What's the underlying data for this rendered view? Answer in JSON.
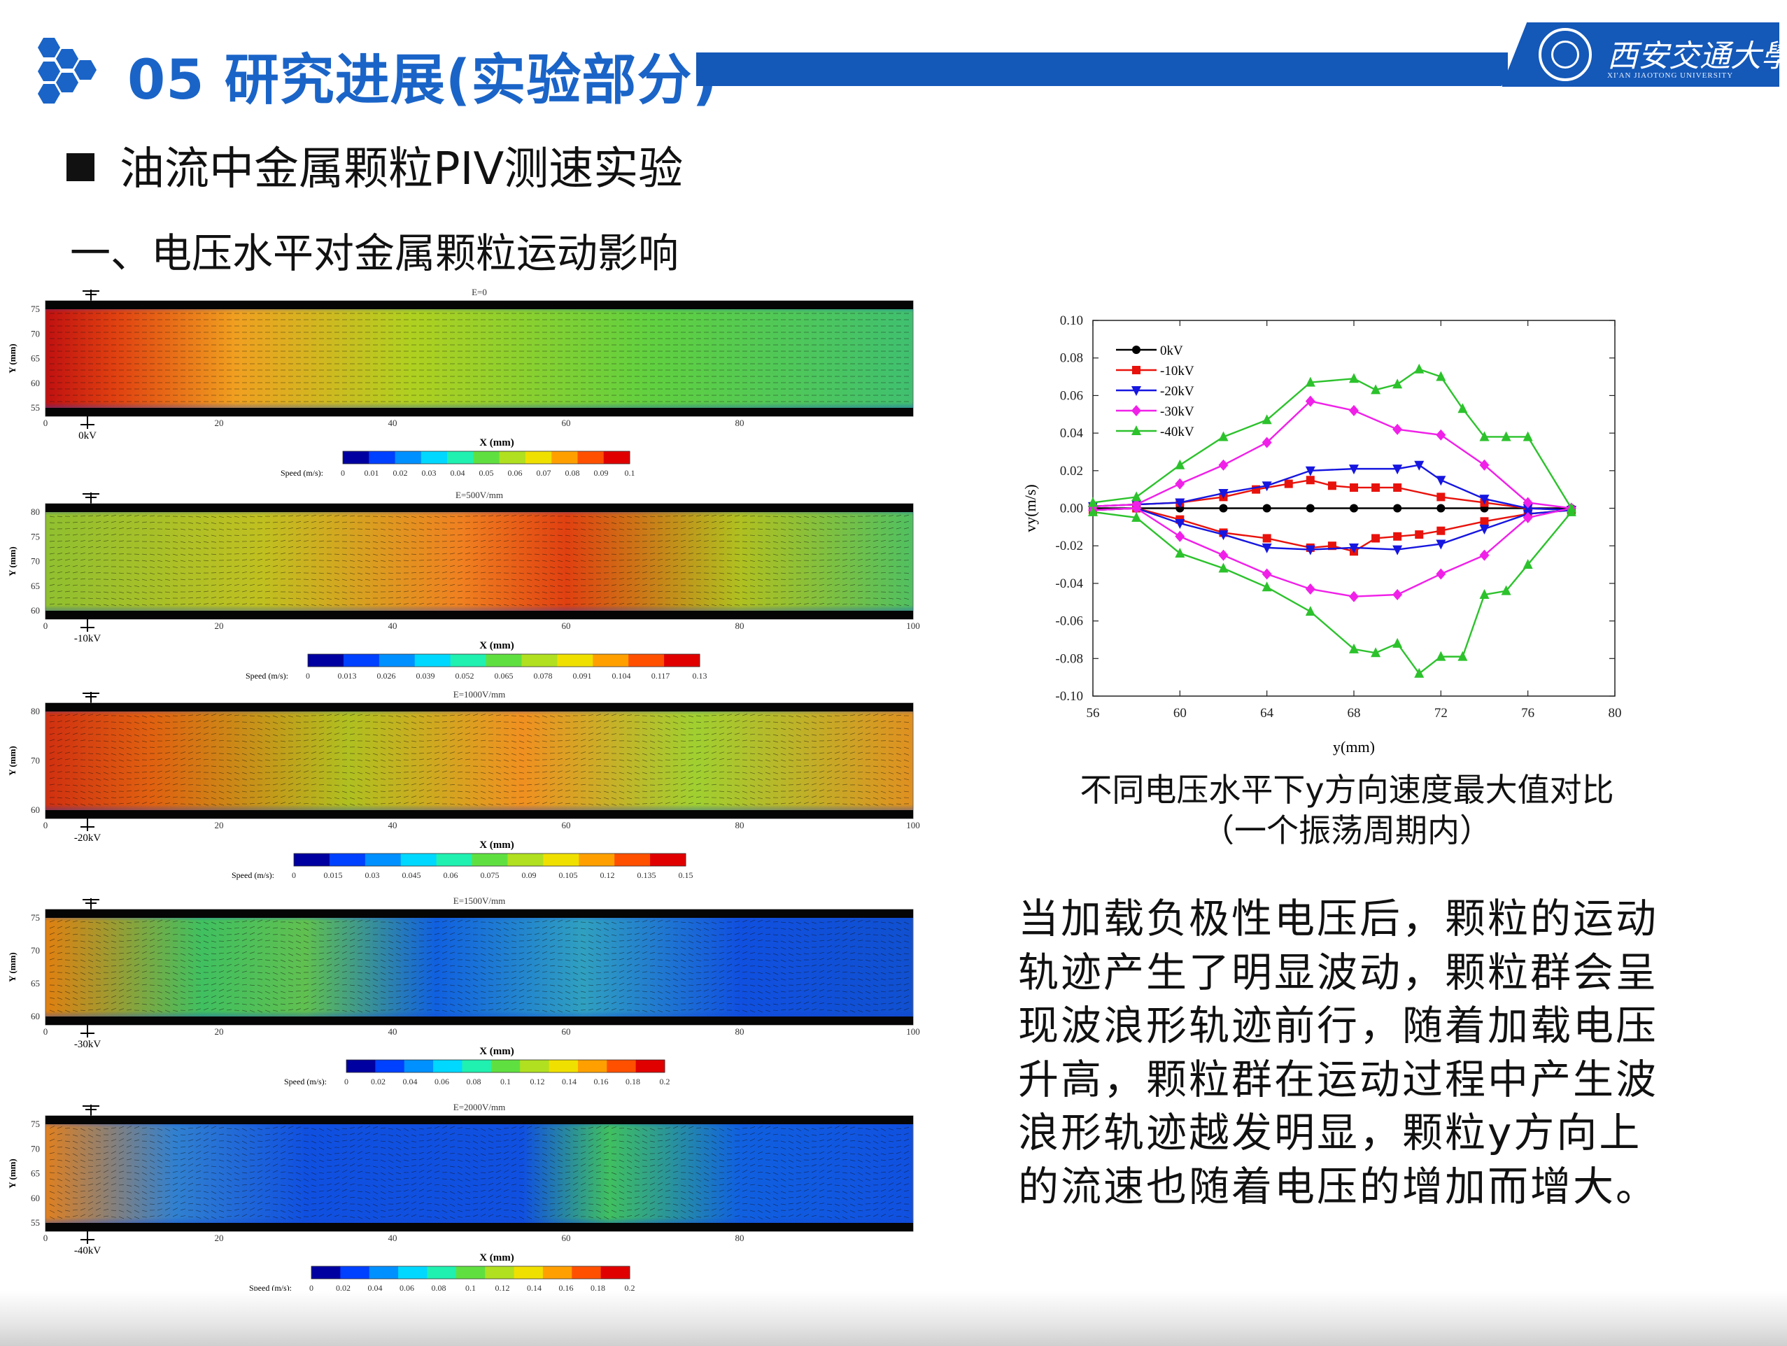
{
  "header": {
    "title": "05 研究进展(实验部分)",
    "university_cn": "西安交通大學",
    "university_en": "XI'AN JIAOTONG UNIVERSITY",
    "accent_color": "#1458b8"
  },
  "headings": {
    "main": "油流中金属颗粒PIV测速实验",
    "sub": "一、电压水平对金属颗粒运动影响"
  },
  "piv_panels": [
    {
      "field_title": "E=0",
      "voltage_label": "0kV",
      "y_axis_label": "Y (mm)",
      "x_axis_label": "X (mm)",
      "y_ticks": [
        "75",
        "70",
        "65",
        "60",
        "55"
      ],
      "x_ticks": [
        "0",
        "20",
        "40",
        "60",
        "80"
      ],
      "speed_label": "Speed (m/s):",
      "colorbar_ticks": [
        "0",
        "0.01",
        "0.02",
        "0.03",
        "0.04",
        "0.05",
        "0.06",
        "0.07",
        "0.08",
        "0.09",
        "0.1"
      ]
    },
    {
      "field_title": "E=500V/mm",
      "voltage_label": "-10kV",
      "y_axis_label": "Y (mm)",
      "x_axis_label": "X (mm)",
      "y_ticks": [
        "80",
        "75",
        "70",
        "65",
        "60"
      ],
      "x_ticks": [
        "0",
        "20",
        "40",
        "60",
        "80",
        "100"
      ],
      "speed_label": "Speed (m/s):",
      "colorbar_ticks": [
        "0",
        "0.013",
        "0.026",
        "0.039",
        "0.052",
        "0.065",
        "0.078",
        "0.091",
        "0.104",
        "0.117",
        "0.13"
      ]
    },
    {
      "field_title": "E=1000V/mm",
      "voltage_label": "-20kV",
      "y_axis_label": "Y (mm)",
      "x_axis_label": "X (mm)",
      "y_ticks": [
        "80",
        "70",
        "60"
      ],
      "x_ticks": [
        "0",
        "20",
        "40",
        "60",
        "80",
        "100"
      ],
      "speed_label": "Speed (m/s):",
      "colorbar_ticks": [
        "0",
        "0.015",
        "0.03",
        "0.045",
        "0.06",
        "0.075",
        "0.09",
        "0.105",
        "0.12",
        "0.135",
        "0.15"
      ]
    },
    {
      "field_title": "E=1500V/mm",
      "voltage_label": "-30kV",
      "y_axis_label": "Y (mm)",
      "x_axis_label": "X (mm)",
      "y_ticks": [
        "75",
        "70",
        "65",
        "60"
      ],
      "x_ticks": [
        "0",
        "20",
        "40",
        "60",
        "80",
        "100"
      ],
      "speed_label": "Speed (m/s):",
      "colorbar_ticks": [
        "0",
        "0.02",
        "0.04",
        "0.06",
        "0.08",
        "0.1",
        "0.12",
        "0.14",
        "0.16",
        "0.18",
        "0.2"
      ]
    },
    {
      "field_title": "E=2000V/mm",
      "voltage_label": "-40kV",
      "y_axis_label": "Y (mm)",
      "x_axis_label": "X (mm)",
      "y_ticks": [
        "75",
        "70",
        "65",
        "60",
        "55"
      ],
      "x_ticks": [
        "0",
        "20",
        "40",
        "60",
        "80"
      ],
      "speed_label": "Speed (m/s):",
      "colorbar_ticks": [
        "0",
        "0.02",
        "0.04",
        "0.06",
        "0.08",
        "0.1",
        "0.12",
        "0.14",
        "0.16",
        "0.18",
        "0.2"
      ]
    }
  ],
  "chart_data": {
    "type": "line",
    "xlabel": "y(mm)",
    "ylabel": "vy(m/s)",
    "xlim": [
      56,
      80
    ],
    "ylim": [
      -0.1,
      0.1
    ],
    "x_ticks": [
      56,
      60,
      64,
      68,
      72,
      76,
      80
    ],
    "y_ticks": [
      0.1,
      0.08,
      0.06,
      0.04,
      0.02,
      0.0,
      -0.02,
      -0.04,
      -0.06,
      -0.08,
      -0.1
    ],
    "y_tick_labels": [
      "0.10",
      "0.08",
      "0.06",
      "0.04",
      "0.02",
      "0.00",
      "-0.02",
      "-0.04",
      "-0.06",
      "-0.08",
      "-0.10"
    ],
    "legend_position": "top-left",
    "series": [
      {
        "name": "0kV",
        "color": "#000000",
        "marker": "circle",
        "upper": {
          "x": [
            56,
            58,
            60,
            62,
            64,
            66,
            68,
            70,
            72,
            74,
            76,
            78
          ],
          "y": [
            0,
            0,
            0,
            0,
            0,
            0,
            0,
            0,
            0,
            0,
            0,
            0
          ]
        }
      },
      {
        "name": "-10kV",
        "color": "#e8120c",
        "marker": "square",
        "upper": {
          "x": [
            56,
            58,
            60,
            62,
            63.5,
            65,
            66,
            67,
            68,
            69,
            70,
            72,
            74,
            76,
            78
          ],
          "y": [
            0.001,
            0.002,
            0.003,
            0.006,
            0.01,
            0.013,
            0.015,
            0.012,
            0.011,
            0.011,
            0.011,
            0.006,
            0.003,
            0.0,
            -0.001
          ]
        },
        "lower": {
          "x": [
            56,
            58,
            60,
            62,
            64,
            66,
            67,
            68,
            69,
            70,
            71,
            72,
            74,
            76,
            78
          ],
          "y": [
            -0.001,
            0.0,
            -0.006,
            -0.013,
            -0.016,
            -0.021,
            -0.02,
            -0.023,
            -0.016,
            -0.015,
            -0.014,
            -0.012,
            -0.007,
            -0.003,
            -0.001
          ]
        }
      },
      {
        "name": "-20kV",
        "color": "#1616e0",
        "marker": "triangle-down",
        "upper": {
          "x": [
            56,
            58,
            60,
            62,
            64,
            66,
            68,
            70,
            71,
            72,
            74,
            76,
            78
          ],
          "y": [
            0.001,
            0.002,
            0.003,
            0.008,
            0.012,
            0.02,
            0.021,
            0.021,
            0.023,
            0.015,
            0.005,
            0.0,
            -0.001
          ]
        },
        "lower": {
          "x": [
            56,
            58,
            60,
            62,
            64,
            66,
            68,
            70,
            72,
            74,
            76,
            78
          ],
          "y": [
            -0.001,
            0.0,
            -0.008,
            -0.014,
            -0.021,
            -0.022,
            -0.021,
            -0.022,
            -0.019,
            -0.011,
            -0.003,
            -0.001
          ]
        }
      },
      {
        "name": "-30kV",
        "color": "#f020e8",
        "marker": "diamond",
        "upper": {
          "x": [
            56,
            58,
            60,
            62,
            64,
            66,
            68,
            70,
            72,
            74,
            76,
            78
          ],
          "y": [
            0.001,
            0.002,
            0.013,
            0.023,
            0.035,
            0.057,
            0.052,
            0.042,
            0.039,
            0.023,
            0.003,
            0.0
          ]
        },
        "lower": {
          "x": [
            56,
            58,
            60,
            62,
            64,
            66,
            68,
            70,
            72,
            74,
            76,
            78
          ],
          "y": [
            -0.001,
            0.0,
            -0.015,
            -0.025,
            -0.035,
            -0.043,
            -0.047,
            -0.046,
            -0.035,
            -0.025,
            -0.005,
            0.0
          ]
        }
      },
      {
        "name": "-40kV",
        "color": "#2cc22c",
        "marker": "triangle-up",
        "upper": {
          "x": [
            56,
            58,
            60,
            62,
            64,
            66,
            68,
            69,
            70,
            71,
            72,
            73,
            74,
            75,
            76,
            78
          ],
          "y": [
            0.003,
            0.006,
            0.023,
            0.038,
            0.047,
            0.067,
            0.069,
            0.063,
            0.066,
            0.074,
            0.07,
            0.053,
            0.038,
            0.038,
            0.038,
            0.0
          ]
        },
        "lower": {
          "x": [
            56,
            58,
            60,
            62,
            64,
            66,
            68,
            69,
            70,
            71,
            72,
            73,
            74,
            75,
            76,
            78
          ],
          "y": [
            -0.002,
            -0.005,
            -0.024,
            -0.032,
            -0.042,
            -0.055,
            -0.075,
            -0.077,
            -0.072,
            -0.088,
            -0.079,
            -0.079,
            -0.046,
            -0.044,
            -0.03,
            -0.002
          ]
        }
      }
    ]
  },
  "caption": {
    "line1": "不同电压水平下y方向速度最大值对比",
    "line2": "（一个振荡周期内）"
  },
  "conclusion": "当加载负极性电压后，颗粒的运动轨迹产生了明显波动，颗粒群会呈现波浪形轨迹前行，随着加载电压升高，颗粒群在运动过程中产生波浪形轨迹越发明显，颗粒y方向上的流速也随着电压的增加而增大。"
}
